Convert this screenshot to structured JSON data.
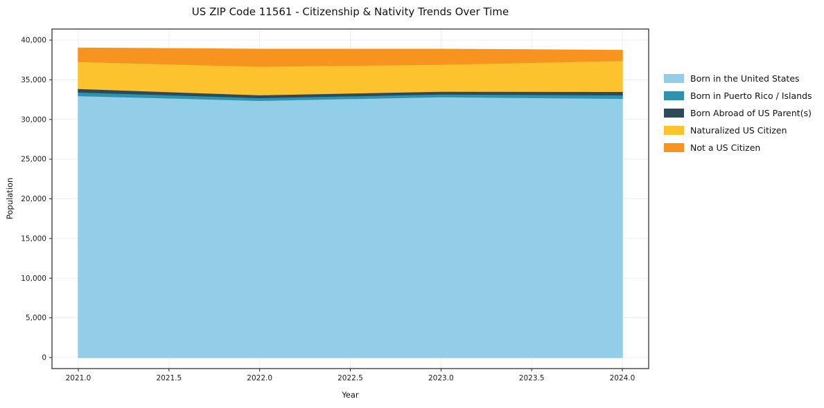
{
  "title": "US ZIP Code 11561 - Citizenship & Nativity Trends Over Time",
  "chart_data": {
    "type": "area",
    "stacked": true,
    "title": "US ZIP Code 11561 - Citizenship & Nativity Trends Over Time",
    "x": [
      2021,
      2022,
      2023,
      2024
    ],
    "series": [
      {
        "name": "Born in the United States",
        "color": "#92cee8",
        "values": [
          33000,
          32400,
          32850,
          32650
        ]
      },
      {
        "name": "Born in Puerto Rico / Islands",
        "color": "#2f93ad",
        "values": [
          450,
          350,
          350,
          440
        ]
      },
      {
        "name": "Born Abroad of US Parent(s)",
        "color": "#2c4a5a",
        "values": [
          450,
          350,
          350,
          440
        ]
      },
      {
        "name": "Naturalized US Citizen",
        "color": "#fdc32f",
        "values": [
          3400,
          3600,
          3400,
          3900
        ]
      },
      {
        "name": "Not a US Citizen",
        "color": "#f7941f",
        "values": [
          1700,
          2150,
          1900,
          1270
        ]
      }
    ],
    "xlabel": "Year",
    "ylabel": "Population",
    "xlim": [
      2021,
      2024
    ],
    "ylim": [
      0,
      40000
    ],
    "xticks": [
      2021.0,
      2021.5,
      2022.0,
      2022.5,
      2023.0,
      2023.5,
      2024.0
    ],
    "yticks": [
      0,
      5000,
      10000,
      15000,
      20000,
      25000,
      30000,
      35000,
      40000
    ],
    "grid": true,
    "legend_position": "right"
  }
}
